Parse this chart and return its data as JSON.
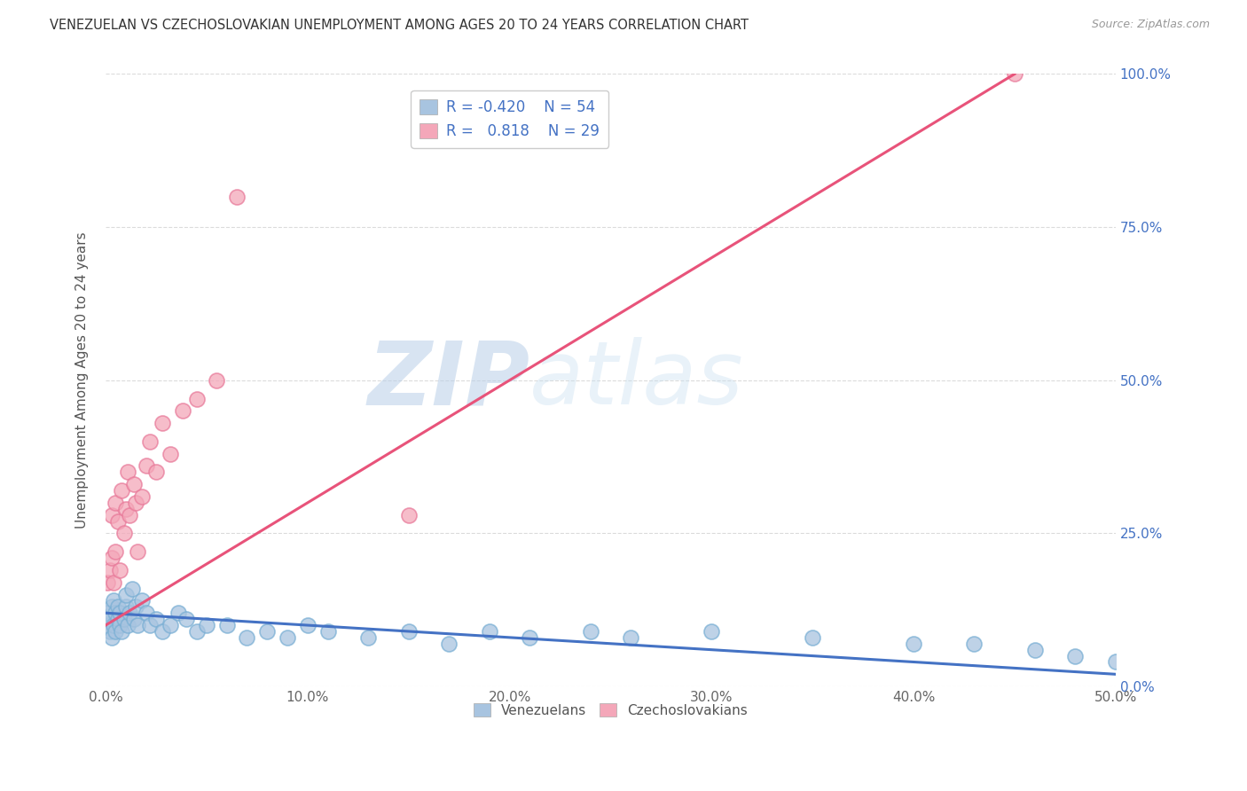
{
  "title": "VENEZUELAN VS CZECHOSLOVAKIAN UNEMPLOYMENT AMONG AGES 20 TO 24 YEARS CORRELATION CHART",
  "source": "Source: ZipAtlas.com",
  "ylabel": "Unemployment Among Ages 20 to 24 years",
  "xlim": [
    0.0,
    0.5
  ],
  "ylim": [
    0.0,
    1.0
  ],
  "xticks": [
    0.0,
    0.1,
    0.2,
    0.3,
    0.4,
    0.5
  ],
  "xticklabels": [
    "0.0%",
    "10.0%",
    "20.0%",
    "30.0%",
    "40.0%",
    "50.0%"
  ],
  "yticks": [
    0.0,
    0.25,
    0.5,
    0.75,
    1.0
  ],
  "yticklabels": [
    "0.0%",
    "25.0%",
    "50.0%",
    "75.0%",
    "100.0%"
  ],
  "venezuelan_color": "#a8c4e0",
  "venezuelan_edge_color": "#7aafd4",
  "czechoslovakian_color": "#f4a7b9",
  "czechoslovakian_edge_color": "#e87a9a",
  "venezuelan_line_color": "#4472c4",
  "czechoslovakian_line_color": "#e8537a",
  "legend_R_venezuelan": "-0.420",
  "legend_N_venezuelan": "54",
  "legend_R_czechoslovakian": "0.818",
  "legend_N_czechoslovakian": "29",
  "watermark_zip": "ZIP",
  "watermark_atlas": "atlas",
  "background_color": "#ffffff",
  "grid_color": "#cccccc",
  "venezuelan_x": [
    0.001,
    0.001,
    0.002,
    0.002,
    0.003,
    0.003,
    0.004,
    0.004,
    0.005,
    0.005,
    0.006,
    0.006,
    0.007,
    0.007,
    0.008,
    0.009,
    0.01,
    0.01,
    0.011,
    0.012,
    0.013,
    0.014,
    0.015,
    0.016,
    0.018,
    0.02,
    0.022,
    0.025,
    0.028,
    0.032,
    0.036,
    0.04,
    0.045,
    0.05,
    0.06,
    0.07,
    0.08,
    0.09,
    0.1,
    0.11,
    0.13,
    0.15,
    0.17,
    0.19,
    0.21,
    0.24,
    0.26,
    0.3,
    0.35,
    0.4,
    0.43,
    0.46,
    0.48,
    0.5
  ],
  "venezuelan_y": [
    0.1,
    0.12,
    0.09,
    0.11,
    0.13,
    0.08,
    0.14,
    0.1,
    0.12,
    0.09,
    0.11,
    0.13,
    0.1,
    0.12,
    0.09,
    0.11,
    0.13,
    0.15,
    0.1,
    0.12,
    0.16,
    0.11,
    0.13,
    0.1,
    0.14,
    0.12,
    0.1,
    0.11,
    0.09,
    0.1,
    0.12,
    0.11,
    0.09,
    0.1,
    0.1,
    0.08,
    0.09,
    0.08,
    0.1,
    0.09,
    0.08,
    0.09,
    0.07,
    0.09,
    0.08,
    0.09,
    0.08,
    0.09,
    0.08,
    0.07,
    0.07,
    0.06,
    0.05,
    0.04
  ],
  "czechoslovakian_x": [
    0.001,
    0.002,
    0.003,
    0.003,
    0.004,
    0.005,
    0.005,
    0.006,
    0.007,
    0.008,
    0.009,
    0.01,
    0.011,
    0.012,
    0.014,
    0.015,
    0.016,
    0.018,
    0.02,
    0.022,
    0.025,
    0.028,
    0.032,
    0.038,
    0.045,
    0.055,
    0.065,
    0.15,
    0.45
  ],
  "czechoslovakian_y": [
    0.17,
    0.19,
    0.21,
    0.28,
    0.17,
    0.22,
    0.3,
    0.27,
    0.19,
    0.32,
    0.25,
    0.29,
    0.35,
    0.28,
    0.33,
    0.3,
    0.22,
    0.31,
    0.36,
    0.4,
    0.35,
    0.43,
    0.38,
    0.45,
    0.47,
    0.5,
    0.8,
    0.28,
    1.0
  ],
  "czechoslovakian_line_x": [
    0.0,
    0.45
  ],
  "czechoslovakian_line_y": [
    0.1,
    1.0
  ],
  "venezuelan_line_x": [
    0.0,
    0.5
  ],
  "venezuelan_line_y": [
    0.12,
    0.02
  ]
}
